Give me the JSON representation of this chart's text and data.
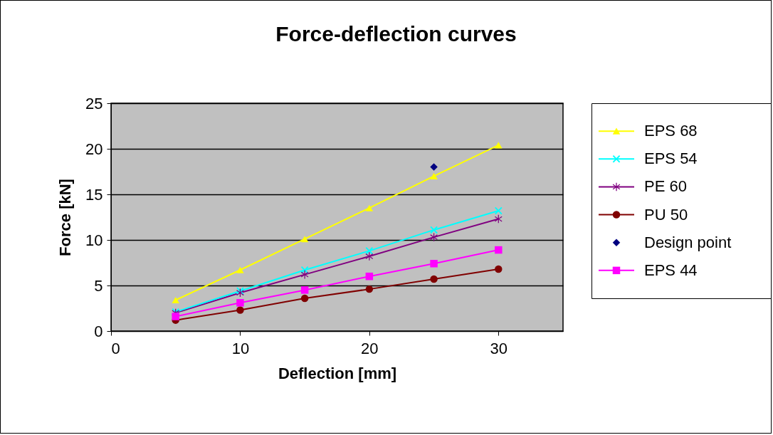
{
  "chart_data": {
    "type": "line",
    "title": "Force-deflection curves",
    "xlabel": "Deflection [mm]",
    "ylabel": "Force [kN]",
    "x": [
      5,
      10,
      15,
      20,
      25,
      30
    ],
    "xlim": [
      0,
      35
    ],
    "xticks": [
      0,
      10,
      20,
      30
    ],
    "ylim": [
      0,
      25
    ],
    "yticks": [
      0,
      5,
      10,
      15,
      20,
      25
    ],
    "grid": "y",
    "legend": "right",
    "series": [
      {
        "name": "EPS 68",
        "color": "#ffff00",
        "marker": "triangle",
        "values": [
          3.4,
          6.7,
          10.1,
          13.5,
          17.0,
          20.4
        ]
      },
      {
        "name": "EPS 54",
        "color": "#00ffff",
        "marker": "cross",
        "values": [
          2.1,
          4.4,
          6.7,
          8.8,
          11.1,
          13.2
        ]
      },
      {
        "name": "PE 60",
        "color": "#800080",
        "marker": "star",
        "values": [
          2.0,
          4.2,
          6.2,
          8.2,
          10.3,
          12.3
        ]
      },
      {
        "name": "PU 50",
        "color": "#800000",
        "marker": "circle",
        "values": [
          1.2,
          2.3,
          3.6,
          4.6,
          5.7,
          6.8
        ]
      },
      {
        "name": "Design point",
        "type": "scatter",
        "color": "#000080",
        "marker": "diamond",
        "x": [
          25
        ],
        "values": [
          18.0
        ]
      },
      {
        "name": "EPS 44",
        "color": "#ff00ff",
        "marker": "square",
        "values": [
          1.6,
          3.1,
          4.5,
          6.0,
          7.4,
          8.9
        ]
      }
    ]
  }
}
